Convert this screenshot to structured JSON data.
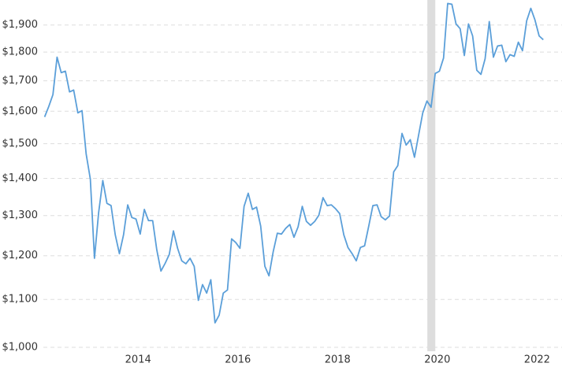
{
  "chart_data": {
    "type": "line",
    "log_scale": true,
    "grid": true,
    "x": [
      2012.125,
      2012.208,
      2012.292,
      2012.375,
      2012.458,
      2012.542,
      2012.625,
      2012.708,
      2012.792,
      2012.875,
      2012.958,
      2013.042,
      2013.125,
      2013.208,
      2013.292,
      2013.375,
      2013.458,
      2013.542,
      2013.625,
      2013.708,
      2013.792,
      2013.875,
      2013.958,
      2014.042,
      2014.125,
      2014.208,
      2014.292,
      2014.375,
      2014.458,
      2014.542,
      2014.625,
      2014.708,
      2014.792,
      2014.875,
      2014.958,
      2015.042,
      2015.125,
      2015.208,
      2015.292,
      2015.375,
      2015.458,
      2015.542,
      2015.625,
      2015.708,
      2015.792,
      2015.875,
      2015.958,
      2016.042,
      2016.125,
      2016.208,
      2016.292,
      2016.375,
      2016.458,
      2016.542,
      2016.625,
      2016.708,
      2016.792,
      2016.875,
      2016.958,
      2017.042,
      2017.125,
      2017.208,
      2017.292,
      2017.375,
      2017.458,
      2017.542,
      2017.625,
      2017.708,
      2017.792,
      2017.875,
      2017.958,
      2018.042,
      2018.125,
      2018.208,
      2018.292,
      2018.375,
      2018.458,
      2018.542,
      2018.625,
      2018.708,
      2018.792,
      2018.875,
      2018.958,
      2019.042,
      2019.125,
      2019.208,
      2019.292,
      2019.375,
      2019.458,
      2019.542,
      2019.625,
      2019.708,
      2019.792,
      2019.875,
      2019.958,
      2020.042,
      2020.125,
      2020.208,
      2020.292,
      2020.375,
      2020.458,
      2020.542,
      2020.625,
      2020.708,
      2020.792,
      2020.875,
      2020.958,
      2021.042,
      2021.125,
      2021.208,
      2021.292,
      2021.375,
      2021.458,
      2021.542,
      2021.625,
      2021.708,
      2021.792,
      2021.875,
      2021.958,
      2022.042,
      2022.125
    ],
    "series": [
      {
        "color": "#5b9fd9",
        "values": [
          1582,
          1615,
          1654,
          1782,
          1728,
          1733,
          1663,
          1669,
          1595,
          1602,
          1470,
          1398,
          1194,
          1307,
          1394,
          1332,
          1326,
          1251,
          1205,
          1251,
          1328,
          1295,
          1291,
          1253,
          1316,
          1287,
          1287,
          1214,
          1164,
          1182,
          1203,
          1261,
          1218,
          1188,
          1181,
          1194,
          1175,
          1098,
          1133,
          1114,
          1144,
          1050,
          1066,
          1114,
          1121,
          1241,
          1232,
          1218,
          1324,
          1359,
          1316,
          1322,
          1273,
          1175,
          1153,
          1209,
          1255,
          1253,
          1267,
          1277,
          1245,
          1271,
          1324,
          1285,
          1275,
          1285,
          1301,
          1347,
          1326,
          1328,
          1318,
          1305,
          1251,
          1220,
          1205,
          1188,
          1220,
          1224,
          1273,
          1326,
          1328,
          1297,
          1289,
          1299,
          1418,
          1436,
          1531,
          1496,
          1512,
          1460,
          1526,
          1595,
          1633,
          1613,
          1725,
          1733,
          1779,
          1983,
          1980,
          1904,
          1886,
          1788,
          1904,
          1859,
          1736,
          1722,
          1776,
          1913,
          1782,
          1822,
          1825,
          1766,
          1791,
          1785,
          1836,
          1805,
          1916,
          1964,
          1919,
          1859,
          1845
        ]
      }
    ],
    "shaded_range": {
      "x": [
        2019.8,
        2019.96
      ],
      "color": "#dddddd"
    },
    "xlim": [
      2012.1,
      2022.2
    ],
    "xticks": [
      2014,
      2016,
      2018,
      2020,
      2022
    ],
    "ylim": [
      1000,
      2000
    ],
    "yticks": [
      {
        "value": 1000,
        "label": "$1,000"
      },
      {
        "value": 1100,
        "label": "$1,100"
      },
      {
        "value": 1200,
        "label": "$1,200"
      },
      {
        "value": 1300,
        "label": "$1,300"
      },
      {
        "value": 1400,
        "label": "$1,400"
      },
      {
        "value": 1500,
        "label": "$1,500"
      },
      {
        "value": 1600,
        "label": "$1,600"
      },
      {
        "value": 1700,
        "label": "$1,700"
      },
      {
        "value": 1800,
        "label": "$1,800"
      },
      {
        "value": 1900,
        "label": "$1,900"
      }
    ]
  }
}
